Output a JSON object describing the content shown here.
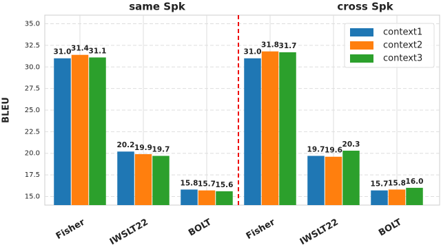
{
  "chart_data": {
    "type": "bar",
    "annotations": [
      "same Spk",
      "cross Spk"
    ],
    "ylabel": "BLEU",
    "categories": [
      "Fisher",
      "IWSLT22",
      "BOLT",
      "Fisher",
      "IWSLT22",
      "BOLT"
    ],
    "series": [
      {
        "name": "context1",
        "color": "#1f77b4",
        "values": [
          31.0,
          20.2,
          15.8,
          31.0,
          19.7,
          15.7
        ],
        "value_labels": [
          "31.0",
          "20.2",
          "15.8",
          "31.0",
          "19.7",
          "15.7"
        ]
      },
      {
        "name": "context2",
        "color": "#ff7f0e",
        "values": [
          31.4,
          19.9,
          15.7,
          31.8,
          19.6,
          15.8
        ],
        "value_labels": [
          "31.4",
          "19.9",
          "15.7",
          "31.8",
          "19.6",
          "15.8"
        ]
      },
      {
        "name": "context3",
        "color": "#2ca02c",
        "values": [
          31.1,
          19.7,
          15.6,
          31.7,
          20.3,
          16.0
        ],
        "value_labels": [
          "31.1",
          "19.7",
          "15.6",
          "31.7",
          "20.3",
          "16.0"
        ]
      }
    ],
    "ylim": [
      14,
      36
    ],
    "yticks": [
      {
        "value": 15,
        "label": "15.0"
      },
      {
        "value": 17.5,
        "label": "17.5"
      },
      {
        "value": 20,
        "label": "20.0"
      },
      {
        "value": 22.5,
        "label": "22.5"
      },
      {
        "value": 25,
        "label": "25.0"
      },
      {
        "value": 27.5,
        "label": "27.5"
      },
      {
        "value": 30,
        "label": "30.0"
      },
      {
        "value": 32.5,
        "label": "32.5"
      },
      {
        "value": 35,
        "label": "35.0"
      }
    ],
    "grid": true,
    "legend": "upper right"
  }
}
